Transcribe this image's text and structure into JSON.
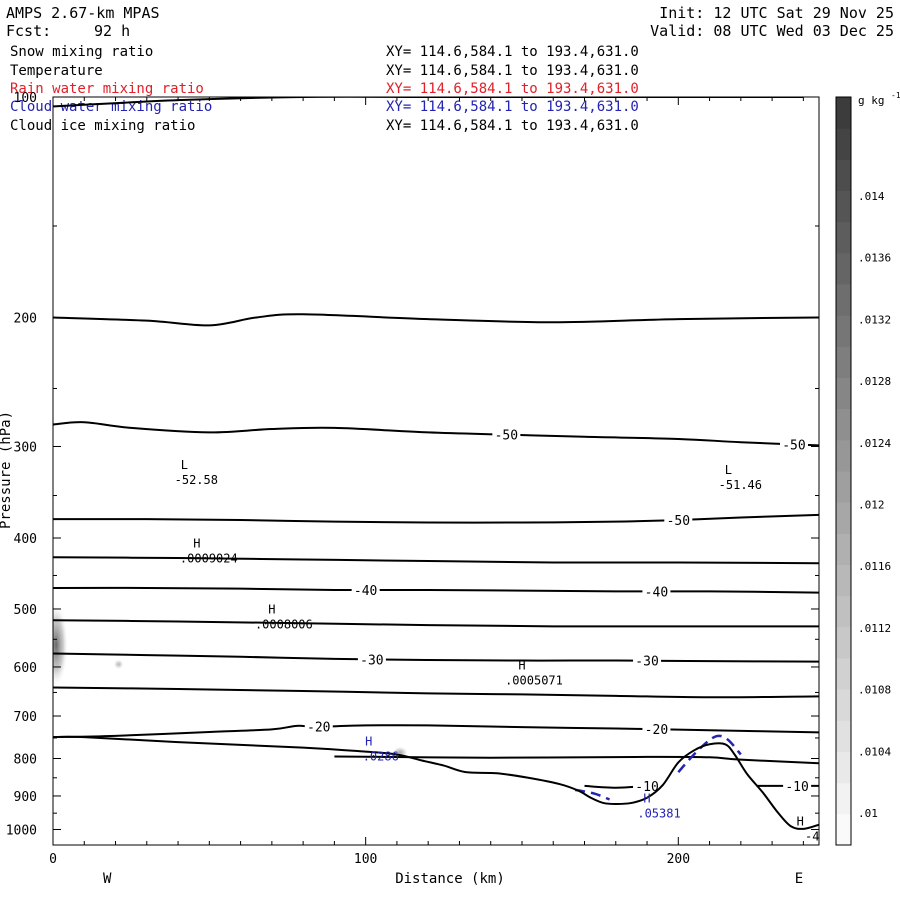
{
  "header": {
    "model": "AMPS 2.67-km MPAS",
    "fcst_label": "Fcst:",
    "fcst_value": "92 h",
    "init": "Init: 12 UTC Sat 29 Nov 25",
    "valid": "Valid: 08 UTC Wed 03 Dec 25"
  },
  "legend": [
    {
      "label": "Snow mixing ratio",
      "xy": "XY= 114.6,584.1 to 193.4,631.0",
      "color": "#000000"
    },
    {
      "label": "Temperature",
      "xy": "XY= 114.6,584.1 to 193.4,631.0",
      "color": "#000000"
    },
    {
      "label": "Rain water mixing ratio",
      "xy": "XY= 114.6,584.1 to 193.4,631.0",
      "color": "#e0202a"
    },
    {
      "label": "Cloud water mixing ratio",
      "xy": "XY= 114.6,584.1 to 193.4,631.0",
      "color": "#2323b4"
    },
    {
      "label": "Cloud ice mixing ratio",
      "xy": "XY= 114.6,584.1 to 193.4,631.0",
      "color": "#000000"
    }
  ],
  "colorbar": {
    "unit": "g kg",
    "unit_sup": "-1",
    "ticks": [
      ".014",
      ".0136",
      ".0132",
      ".0128",
      ".0124",
      ".012",
      ".0116",
      ".0112",
      ".0108",
      ".0104",
      ".01"
    ]
  },
  "chart_data": {
    "type": "line",
    "xlabel": "Distance (km)",
    "ylabel": "Pressure (hPa)",
    "xlim": [
      0,
      245
    ],
    "ylim": [
      1050,
      100
    ],
    "y_log": true,
    "x_ticks": [
      0,
      100,
      200
    ],
    "y_ticks": [
      100,
      200,
      300,
      400,
      500,
      600,
      700,
      800,
      900,
      1000
    ],
    "x_end_labels": {
      "left": "W",
      "right": "E"
    },
    "terrain": [
      [
        0,
        748
      ],
      [
        10,
        748
      ],
      [
        40,
        760
      ],
      [
        80,
        773
      ],
      [
        100,
        783
      ],
      [
        110,
        790
      ],
      [
        118,
        805
      ],
      [
        125,
        818
      ],
      [
        132,
        835
      ],
      [
        142,
        838
      ],
      [
        152,
        850
      ],
      [
        162,
        867
      ],
      [
        168,
        885
      ],
      [
        172,
        905
      ],
      [
        176,
        920
      ],
      [
        180,
        923
      ],
      [
        185,
        920
      ],
      [
        190,
        905
      ],
      [
        195,
        870
      ],
      [
        200,
        810
      ],
      [
        205,
        780
      ],
      [
        210,
        765
      ],
      [
        215,
        765
      ],
      [
        218,
        790
      ],
      [
        222,
        840
      ],
      [
        227,
        890
      ],
      [
        232,
        950
      ],
      [
        236,
        990
      ],
      [
        240,
        998
      ],
      [
        245,
        985
      ]
    ],
    "temperature_contours": [
      {
        "level": "-50",
        "points": [
          [
            0,
            280
          ],
          [
            10,
            278
          ],
          [
            25,
            283
          ],
          [
            50,
            287
          ],
          [
            70,
            284
          ],
          [
            90,
            283
          ],
          [
            120,
            287
          ],
          [
            145,
            289
          ],
          [
            170,
            291
          ],
          [
            200,
            293
          ],
          [
            220,
            296
          ],
          [
            245,
            299
          ]
        ],
        "labels": [
          [
            145,
            "-50"
          ],
          [
            237,
            "-50"
          ]
        ]
      },
      {
        "level": "-50",
        "points": [
          [
            0,
            377
          ],
          [
            30,
            377
          ],
          [
            60,
            378
          ],
          [
            90,
            380
          ],
          [
            120,
            381
          ],
          [
            150,
            381
          ],
          [
            180,
            380
          ],
          [
            200,
            378
          ],
          [
            220,
            375
          ],
          [
            245,
            372
          ]
        ],
        "labels": [
          [
            200,
            "-50"
          ]
        ]
      },
      {
        "level": "-40",
        "points": [
          [
            0,
            468
          ],
          [
            30,
            468
          ],
          [
            60,
            469
          ],
          [
            90,
            471
          ],
          [
            120,
            471
          ],
          [
            150,
            472
          ],
          [
            180,
            473
          ],
          [
            210,
            473
          ],
          [
            245,
            475
          ]
        ],
        "labels": [
          [
            100,
            "-40"
          ],
          [
            193,
            "-40"
          ]
        ]
      },
      {
        "level": "-30",
        "points": [
          [
            0,
            575
          ],
          [
            30,
            578
          ],
          [
            60,
            581
          ],
          [
            90,
            585
          ],
          [
            120,
            587
          ],
          [
            150,
            588
          ],
          [
            180,
            588
          ],
          [
            210,
            589
          ],
          [
            245,
            590
          ]
        ],
        "labels": [
          [
            102,
            "-30"
          ],
          [
            190,
            "-30"
          ]
        ]
      },
      {
        "level": "-20",
        "points": [
          [
            0,
            748
          ],
          [
            20,
            745
          ],
          [
            50,
            736
          ],
          [
            70,
            730
          ],
          [
            78,
            722
          ],
          [
            84,
            724
          ],
          [
            100,
            721
          ],
          [
            120,
            721
          ],
          [
            150,
            725
          ],
          [
            180,
            728
          ],
          [
            210,
            732
          ],
          [
            245,
            737
          ]
        ],
        "labels": [
          [
            85,
            "-20"
          ],
          [
            193,
            "-20"
          ]
        ]
      },
      {
        "level": "-10",
        "points": [
          [
            170,
            872
          ],
          [
            180,
            877
          ],
          [
            190,
            872
          ]
        ],
        "labels": [
          [
            190,
            "-10"
          ]
        ]
      },
      {
        "level": "-10",
        "points": [
          [
            225,
            872
          ],
          [
            245,
            872
          ]
        ],
        "labels": [
          [
            238,
            "-10"
          ]
        ]
      }
    ],
    "other_contours": [
      {
        "points": [
          [
            0,
            103
          ],
          [
            40,
            101
          ],
          [
            80,
            100
          ],
          [
            120,
            100
          ],
          [
            150,
            100
          ],
          [
            200,
            100
          ],
          [
            240,
            100
          ]
        ]
      },
      {
        "points": [
          [
            0,
            200
          ],
          [
            30,
            202
          ],
          [
            50,
            205
          ],
          [
            65,
            200
          ],
          [
            80,
            198
          ],
          [
            120,
            201
          ],
          [
            160,
            203
          ],
          [
            200,
            201
          ],
          [
            245,
            200
          ]
        ]
      },
      {
        "points": [
          [
            0,
            425
          ],
          [
            40,
            426
          ],
          [
            80,
            428
          ],
          [
            120,
            430
          ],
          [
            160,
            432
          ],
          [
            200,
            432
          ],
          [
            245,
            433
          ]
        ]
      },
      {
        "points": [
          [
            0,
            518
          ],
          [
            40,
            520
          ],
          [
            80,
            523
          ],
          [
            120,
            526
          ],
          [
            160,
            528
          ],
          [
            200,
            528
          ],
          [
            245,
            528
          ]
        ]
      },
      {
        "points": [
          [
            0,
            640
          ],
          [
            40,
            643
          ],
          [
            80,
            647
          ],
          [
            120,
            652
          ],
          [
            150,
            654
          ],
          [
            180,
            657
          ],
          [
            210,
            660
          ],
          [
            245,
            658
          ]
        ]
      },
      {
        "points": [
          [
            90,
            795
          ],
          [
            140,
            798
          ],
          [
            190,
            796
          ],
          [
            210,
            797
          ],
          [
            220,
            803
          ],
          [
            245,
            812
          ]
        ]
      }
    ],
    "cloud_water_contour": {
      "points": [
        [
          167,
          883
        ],
        [
          173,
          893
        ],
        [
          178,
          910
        ]
      ],
      "points2": [
        [
          200,
          835
        ],
        [
          205,
          790
        ],
        [
          210,
          755
        ],
        [
          213,
          745
        ],
        [
          216,
          755
        ],
        [
          220,
          790
        ]
      ]
    },
    "markers": [
      {
        "kind": "L",
        "x": 42,
        "p": 322,
        "value": "-52.58",
        "color": "#000000"
      },
      {
        "kind": "L",
        "x": 216,
        "p": 327,
        "value": "-51.46",
        "color": "#000000"
      },
      {
        "kind": "H",
        "x": 46,
        "p": 412,
        "value": ".0009024",
        "color": "#000000"
      },
      {
        "kind": "H",
        "x": 70,
        "p": 507,
        "value": ".0008006",
        "color": "#000000"
      },
      {
        "kind": "H",
        "x": 150,
        "p": 605,
        "value": ".0005071",
        "color": "#000000"
      },
      {
        "kind": "H",
        "x": 101,
        "p": 768,
        "value": ".0286",
        "color": "#2323b4"
      },
      {
        "kind": "H",
        "x": 190,
        "p": 918,
        "value": ".05381",
        "color": "#2323b4"
      },
      {
        "kind": "H",
        "x": 239,
        "p": 987,
        "value": "-4",
        "color": "#000000"
      }
    ]
  }
}
